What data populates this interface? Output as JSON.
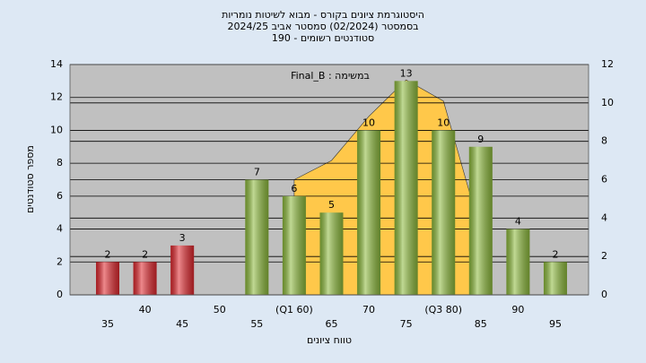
{
  "chart_data": {
    "type": "bar",
    "title": [
      "היסטוגרמת ציונים בקורס - מבוא לשיטות נומריות",
      "בסמסטר  (02/2024)  סמסטר אביב 2024/25",
      "סטודנטים רשומים - 190"
    ],
    "annotation": "Final_B : במשימה",
    "x_label": "טווח ציונים",
    "y_label": "מספר סטודנטים",
    "categories": [
      "35",
      "40",
      "45",
      "50",
      "55",
      "(Q1 60)",
      "65",
      "70",
      "75",
      "(Q3 80)",
      "85",
      "90",
      "95"
    ],
    "values": [
      2,
      2,
      3,
      null,
      7,
      6,
      5,
      10,
      13,
      10,
      9,
      4,
      2
    ],
    "colors": [
      "#e0282e",
      "#e0282e",
      "#e0282e",
      "#8dba3c",
      "#8dba3c",
      "#8dba3c",
      "#8dba3c",
      "#8dba3c",
      "#8dba3c",
      "#8dba3c",
      "#8dba3c",
      "#8dba3c",
      "#8dba3c"
    ],
    "area": {
      "type": "area",
      "axis": "y2",
      "color": "#ffc84a",
      "values": [
        null,
        null,
        null,
        null,
        null,
        6,
        7,
        9.3,
        11.2,
        10.1,
        3.3,
        null,
        null
      ]
    },
    "ylim": [
      0,
      14
    ],
    "yticks": [
      0,
      2,
      4,
      6,
      8,
      10,
      12,
      14
    ],
    "y2lim": [
      0,
      12
    ],
    "y2ticks": [
      0,
      2,
      4,
      6,
      8,
      10,
      12
    ],
    "grid": true
  }
}
